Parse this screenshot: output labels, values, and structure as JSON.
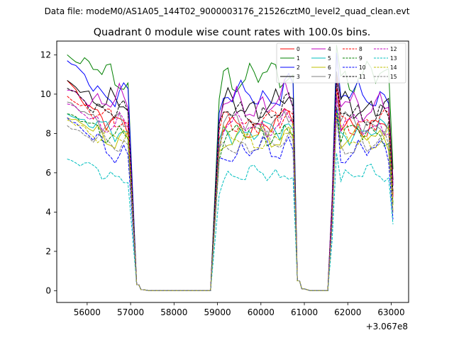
{
  "chart_data": {
    "type": "line",
    "suptitle": "Data file: modeM0/AS1A05_144T02_9000003176_21526cztM0_level2_quad_clean.evt",
    "title": "Quadrant 0 module wise count rates with 100.0s bins.",
    "xlabel": "",
    "ylabel": "",
    "x_offset_label": "+3.067e8",
    "xlim": [
      55300,
      63400
    ],
    "ylim": [
      -0.6,
      12.7
    ],
    "xticks": [
      56000,
      57000,
      58000,
      59000,
      60000,
      61000,
      62000,
      63000
    ],
    "xtick_labels": [
      "56000",
      "57000",
      "58000",
      "59000",
      "60000",
      "61000",
      "62000",
      "63000"
    ],
    "yticks": [
      0,
      2,
      4,
      6,
      8,
      10,
      12
    ],
    "ytick_labels": [
      "0",
      "2",
      "4",
      "6",
      "8",
      "10",
      "12"
    ],
    "legend_position": "upper-right",
    "x_segments": [
      [
        55540,
        56940,
        100
      ],
      [
        57140,
        57290,
        50
      ],
      [
        57440,
        58840,
        100
      ],
      [
        59040,
        60740,
        100
      ],
      [
        60840,
        60990,
        50
      ],
      [
        61140,
        61540,
        100
      ],
      [
        61640,
        63040,
        100
      ]
    ],
    "series": [
      {
        "name": "0",
        "color": "#ff0000",
        "dash": "solid",
        "level": 8.4,
        "start": 10.7,
        "amp": 0.35,
        "a": 1.3,
        "b": 0.4
      },
      {
        "name": "1",
        "color": "#008000",
        "dash": "solid",
        "level": 10.9,
        "start": 12.0,
        "amp": 0.5,
        "a": 2.1,
        "b": 1.1
      },
      {
        "name": "2",
        "color": "#0000ff",
        "dash": "solid",
        "level": 9.9,
        "start": 11.7,
        "amp": 0.4,
        "a": 0.7,
        "b": 2.3
      },
      {
        "name": "3",
        "color": "#000000",
        "dash": "solid",
        "level": 9.4,
        "start": 10.7,
        "amp": 0.45,
        "a": 1.9,
        "b": 0.2
      },
      {
        "name": "4",
        "color": "#bf00bf",
        "dash": "solid",
        "level": 9.5,
        "start": 10.2,
        "amp": 0.5,
        "a": 1.1,
        "b": 2.9
      },
      {
        "name": "5",
        "color": "#00bfbf",
        "dash": "solid",
        "level": 8.1,
        "start": 9.0,
        "amp": 0.35,
        "a": 2.6,
        "b": 0.9
      },
      {
        "name": "6",
        "color": "#bfbf00",
        "dash": "solid",
        "level": 7.8,
        "start": 8.8,
        "amp": 0.35,
        "a": 0.9,
        "b": 1.7
      },
      {
        "name": "7",
        "color": "#808080",
        "dash": "solid",
        "level": 8.5,
        "start": 9.6,
        "amp": 0.35,
        "a": 1.6,
        "b": 2.6
      },
      {
        "name": "8",
        "color": "#ff0000",
        "dash": "dashed",
        "level": 8.6,
        "start": 9.9,
        "amp": 0.4,
        "a": 2.3,
        "b": 0.6
      },
      {
        "name": "9",
        "color": "#008000",
        "dash": "dashed",
        "level": 8.0,
        "start": 9.0,
        "amp": 0.35,
        "a": 1.4,
        "b": 2.0
      },
      {
        "name": "10",
        "color": "#0000ff",
        "dash": "dashed",
        "level": 7.1,
        "start": 8.8,
        "amp": 0.4,
        "a": 0.8,
        "b": 1.3
      },
      {
        "name": "11",
        "color": "#000000",
        "dash": "dashed",
        "level": 9.0,
        "start": 10.3,
        "amp": 0.4,
        "a": 2.8,
        "b": 0.1
      },
      {
        "name": "12",
        "color": "#bf00bf",
        "dash": "dashed",
        "level": 8.4,
        "start": 9.5,
        "amp": 0.35,
        "a": 1.2,
        "b": 2.4
      },
      {
        "name": "13",
        "color": "#00bfbf",
        "dash": "dashed",
        "level": 5.9,
        "start": 6.7,
        "amp": 0.3,
        "a": 1.7,
        "b": 1.5
      },
      {
        "name": "14",
        "color": "#bfbf00",
        "dash": "dashed",
        "level": 7.7,
        "start": 8.7,
        "amp": 0.35,
        "a": 2.2,
        "b": 2.8
      },
      {
        "name": "15",
        "color": "#808080",
        "dash": "dashed",
        "level": 7.4,
        "start": 8.4,
        "amp": 0.35,
        "a": 0.6,
        "b": 0.8
      }
    ]
  }
}
